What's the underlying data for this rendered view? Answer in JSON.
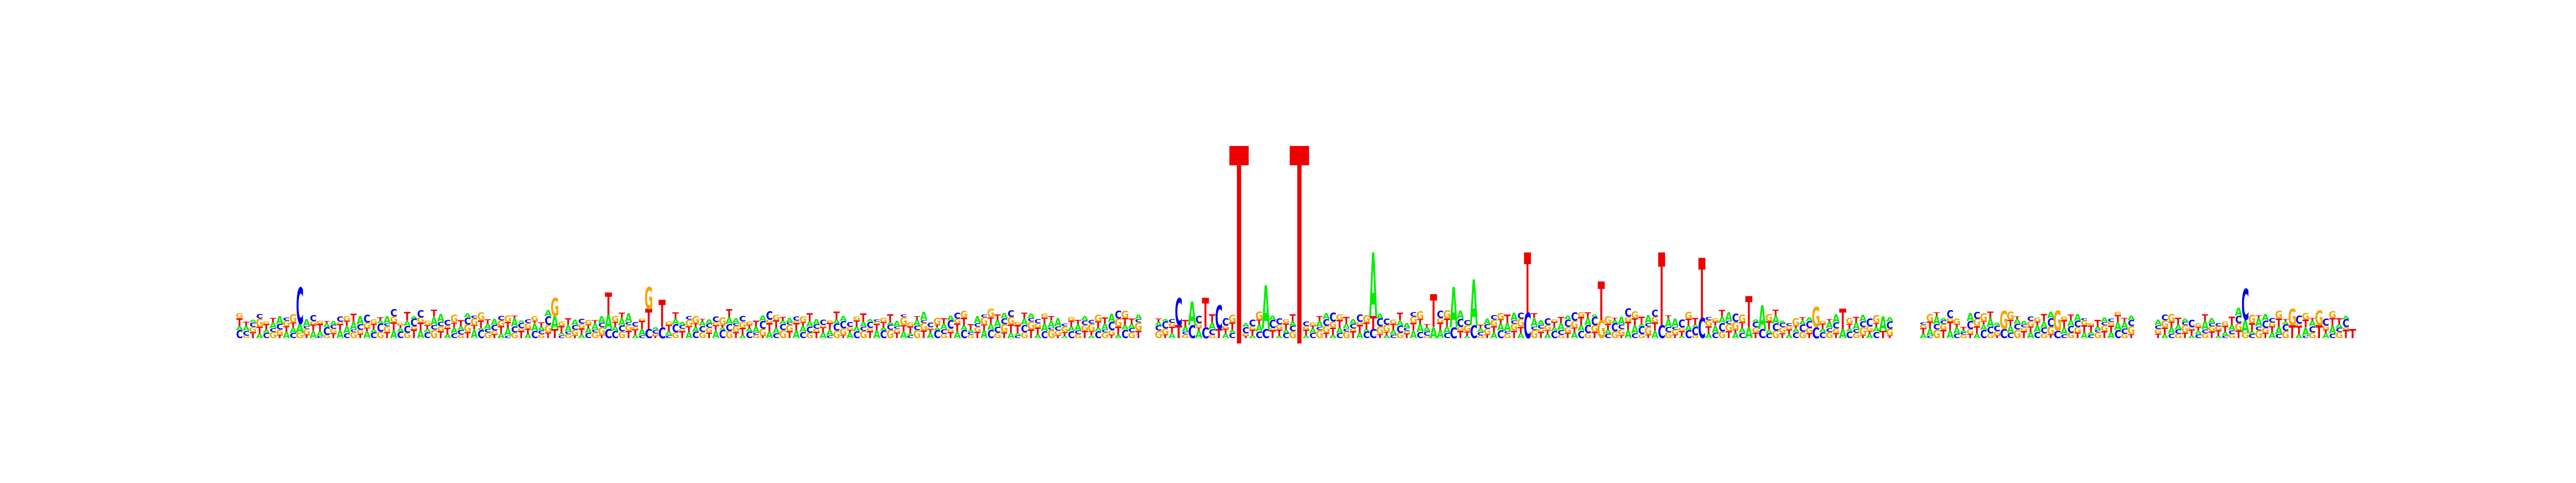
{
  "chart_data": {
    "type": "sequence_logo",
    "alphabet": [
      "A",
      "C",
      "G",
      "T"
    ],
    "colors": {
      "A": "#00ee00",
      "C": "#0000ee",
      "G": "#f5a500",
      "T": "#ee0000",
      "marker": "#ee0000"
    },
    "ylim": [
      0,
      2
    ],
    "x_positions": 316,
    "markers": [
      {
        "position": 150,
        "value": 2.0
      },
      {
        "position": 159,
        "value": 2.0
      }
    ],
    "columns": [
      {
        "position": 10,
        "letters": [
          [
            "C",
            0.4
          ],
          [
            "A",
            0.1
          ],
          [
            "G",
            0.06
          ]
        ]
      },
      {
        "position": 48,
        "letters": [
          [
            "G",
            0.2
          ],
          [
            "A",
            0.14
          ],
          [
            "T",
            0.1
          ]
        ]
      },
      {
        "position": 56,
        "letters": [
          [
            "T",
            0.24
          ],
          [
            "A",
            0.16
          ],
          [
            "C",
            0.1
          ]
        ]
      },
      {
        "position": 62,
        "letters": [
          [
            "G",
            0.24
          ],
          [
            "T",
            0.22
          ],
          [
            "C",
            0.1
          ]
        ]
      },
      {
        "position": 64,
        "letters": [
          [
            "T",
            0.3
          ],
          [
            "C",
            0.12
          ]
        ]
      },
      {
        "position": 141,
        "letters": [
          [
            "C",
            0.3
          ],
          [
            "T",
            0.14
          ]
        ]
      },
      {
        "position": 143,
        "letters": [
          [
            "A",
            0.26
          ],
          [
            "C",
            0.14
          ]
        ]
      },
      {
        "position": 145,
        "letters": [
          [
            "T",
            0.32
          ],
          [
            "C",
            0.12
          ]
        ]
      },
      {
        "position": 147,
        "letters": [
          [
            "C",
            0.26
          ],
          [
            "T",
            0.1
          ]
        ]
      },
      {
        "position": 154,
        "letters": [
          [
            "A",
            0.48
          ],
          [
            "C",
            0.1
          ]
        ]
      },
      {
        "position": 170,
        "letters": [
          [
            "A",
            0.7
          ],
          [
            "T",
            0.14
          ],
          [
            "C",
            0.1
          ]
        ]
      },
      {
        "position": 179,
        "letters": [
          [
            "T",
            0.36
          ],
          [
            "A",
            0.12
          ]
        ]
      },
      {
        "position": 182,
        "letters": [
          [
            "A",
            0.44
          ],
          [
            "C",
            0.12
          ]
        ]
      },
      {
        "position": 185,
        "letters": [
          [
            "A",
            0.5
          ],
          [
            "C",
            0.14
          ]
        ]
      },
      {
        "position": 193,
        "letters": [
          [
            "T",
            0.66
          ],
          [
            "C",
            0.28
          ]
        ]
      },
      {
        "position": 204,
        "letters": [
          [
            "T",
            0.42
          ],
          [
            "G",
            0.2
          ]
        ]
      },
      {
        "position": 213,
        "letters": [
          [
            "T",
            0.8
          ],
          [
            "C",
            0.14
          ]
        ]
      },
      {
        "position": 219,
        "letters": [
          [
            "T",
            0.66
          ],
          [
            "C",
            0.22
          ]
        ]
      },
      {
        "position": 226,
        "letters": [
          [
            "T",
            0.34
          ],
          [
            "A",
            0.12
          ]
        ]
      },
      {
        "position": 228,
        "letters": [
          [
            "A",
            0.26
          ],
          [
            "C",
            0.1
          ]
        ]
      },
      {
        "position": 236,
        "letters": [
          [
            "G",
            0.22
          ],
          [
            "C",
            0.12
          ]
        ]
      },
      {
        "position": 240,
        "letters": [
          [
            "T",
            0.22
          ],
          [
            "A",
            0.1
          ]
        ]
      },
      {
        "position": 246,
        "letters": [
          [
            "A",
            0.16
          ],
          [
            "T",
            0.08
          ]
        ]
      },
      {
        "position": 264,
        "letters": [
          [
            "G",
            0.2
          ],
          [
            "C",
            0.1
          ]
        ]
      },
      {
        "position": 272,
        "letters": [
          [
            "G",
            0.22
          ],
          [
            "C",
            0.08
          ]
        ]
      },
      {
        "position": 300,
        "letters": [
          [
            "C",
            0.34
          ],
          [
            "A",
            0.14
          ],
          [
            "G",
            0.06
          ]
        ]
      },
      {
        "position": 307,
        "letters": [
          [
            "G",
            0.18
          ],
          [
            "T",
            0.14
          ]
        ]
      },
      {
        "position": 311,
        "letters": [
          [
            "G",
            0.16
          ],
          [
            "T",
            0.14
          ]
        ]
      },
      {
        "position": 316,
        "letters": [
          [
            "T",
            0.1
          ]
        ]
      }
    ],
    "gaps": [
      [
        136,
        137
      ],
      [
        248,
        251
      ],
      [
        284,
        286
      ]
    ]
  }
}
